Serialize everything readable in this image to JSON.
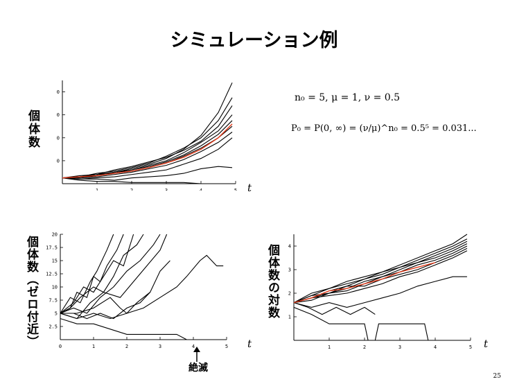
{
  "slide": {
    "title": "シミュレーション例",
    "page_number": "25",
    "params": "n₀ = 5, μ = 1, ν = 0.5",
    "formula": "P₀ = P(0, ∞) = (ν/μ)^n₀ = 0.5⁵ = 0.031...",
    "extinction_label": "絶滅"
  },
  "chart_data": [
    {
      "type": "line",
      "ylabel": "個体数",
      "xlabel": "t",
      "xlim": [
        0,
        5
      ],
      "ylim": [
        0,
        90
      ],
      "x_ticks": [
        "1",
        "2",
        "3",
        "4",
        "5"
      ],
      "y_ticks": [
        "20",
        "40",
        "60",
        "80"
      ],
      "x_tick_values": [
        1,
        2,
        3,
        4,
        5
      ],
      "y_tick_values": [
        20,
        40,
        60,
        80
      ],
      "series": [
        {
          "color": "#000000",
          "x": [
            0,
            0.5,
            1,
            1.5,
            2,
            2.5,
            3,
            3.5,
            4,
            4.5,
            4.9
          ],
          "values": [
            5,
            6,
            8,
            10,
            13,
            17,
            22,
            30,
            42,
            62,
            88
          ]
        },
        {
          "color": "#000000",
          "x": [
            0,
            0.5,
            1,
            1.5,
            2,
            2.5,
            3,
            3.5,
            4,
            4.5,
            4.9
          ],
          "values": [
            5,
            6,
            9,
            11,
            14,
            18,
            24,
            31,
            40,
            55,
            75
          ]
        },
        {
          "color": "#000000",
          "x": [
            0,
            0.5,
            1,
            1.5,
            2,
            2.5,
            3,
            3.5,
            4,
            4.5,
            4.9
          ],
          "values": [
            5,
            7,
            8,
            12,
            15,
            19,
            23,
            29,
            37,
            50,
            68
          ]
        },
        {
          "color": "#000000",
          "x": [
            0,
            0.5,
            1,
            1.5,
            2,
            2.5,
            3,
            3.5,
            4,
            4.5,
            4.9
          ],
          "values": [
            5,
            5,
            7,
            9,
            12,
            16,
            20,
            27,
            36,
            46,
            60
          ]
        },
        {
          "color": "#000000",
          "x": [
            0,
            0.5,
            1,
            1.5,
            2,
            2.5,
            3,
            3.5,
            4,
            4.5,
            4.9
          ],
          "values": [
            5,
            6,
            7,
            10,
            12,
            15,
            19,
            25,
            33,
            43,
            55
          ]
        },
        {
          "color": "#000000",
          "x": [
            0,
            0.5,
            1,
            1.5,
            2,
            2.5,
            3,
            3.5,
            4,
            4.5,
            4.9
          ],
          "values": [
            5,
            6,
            8,
            9,
            11,
            14,
            18,
            24,
            31,
            40,
            50
          ]
        },
        {
          "color": "#000000",
          "x": [
            0,
            0.5,
            1,
            1.5,
            2,
            2.5,
            3,
            3.5,
            4,
            4.5,
            4.9
          ],
          "values": [
            5,
            5,
            6,
            8,
            10,
            13,
            16,
            21,
            28,
            36,
            45
          ]
        },
        {
          "color": "#000000",
          "x": [
            0,
            0.5,
            1,
            1.5,
            2,
            2.5,
            3,
            3.5,
            4,
            4.5,
            4.9
          ],
          "values": [
            5,
            4,
            5,
            6,
            8,
            10,
            12,
            17,
            22,
            30,
            40
          ]
        },
        {
          "color": "#000000",
          "x": [
            0,
            0.5,
            1,
            1.5,
            2,
            2.5,
            3,
            3.5,
            4,
            4.5,
            4.9
          ],
          "values": [
            5,
            4,
            4,
            3,
            5,
            6,
            7,
            9,
            13,
            15,
            14
          ]
        },
        {
          "color": "#000000",
          "x": [
            0,
            0.5,
            1,
            1.5,
            2,
            2.5,
            3,
            3.5,
            4,
            4.2
          ],
          "values": [
            5,
            3,
            2,
            2,
            1,
            1,
            1,
            1,
            0,
            0
          ]
        },
        {
          "color": "#e03a1a",
          "x": [
            0,
            0.5,
            1,
            1.5,
            2,
            2.5,
            3,
            3.5,
            4,
            4.5,
            4.9
          ],
          "values": [
            5,
            6,
            7,
            9,
            11,
            14,
            18,
            23,
            30,
            40,
            52
          ]
        }
      ]
    },
    {
      "type": "line",
      "ylabel": "個体数（ゼロ付近）",
      "xlabel": "t",
      "xlim": [
        0,
        5
      ],
      "ylim": [
        0,
        20
      ],
      "x_ticks": [
        "0",
        "1",
        "2",
        "3",
        "4",
        "5"
      ],
      "y_ticks": [
        "2.5",
        "5",
        "7.5",
        "10",
        "12.5",
        "15",
        "17.5",
        "20"
      ],
      "x_tick_values": [
        0,
        1,
        2,
        3,
        4,
        5
      ],
      "y_tick_values": [
        2.5,
        5,
        7.5,
        10,
        12.5,
        15,
        17.5,
        20
      ],
      "series": [
        {
          "color": "#000000",
          "x": [
            0,
            0.3,
            0.6,
            0.9,
            1.1,
            1.4,
            1.6
          ],
          "values": [
            5,
            8,
            7,
            11,
            13,
            17,
            20
          ]
        },
        {
          "color": "#000000",
          "x": [
            0,
            0.3,
            0.5,
            0.8,
            1.0,
            1.2,
            1.4,
            1.7,
            1.9
          ],
          "values": [
            5,
            6,
            9,
            8,
            12,
            11,
            14,
            17,
            20
          ]
        },
        {
          "color": "#000000",
          "x": [
            0,
            0.4,
            0.7,
            1.0,
            1.3,
            1.6,
            1.9,
            2.2
          ],
          "values": [
            5,
            7,
            10,
            9,
            12,
            15,
            14,
            20
          ]
        },
        {
          "color": "#000000",
          "x": [
            0,
            0.3,
            0.6,
            1.0,
            1.3,
            1.6,
            1.9,
            2.3,
            2.5
          ],
          "values": [
            5,
            6,
            8,
            10,
            9,
            12,
            16,
            18,
            20
          ]
        },
        {
          "color": "#000000",
          "x": [
            0,
            0.4,
            0.8,
            1.2,
            1.6,
            2.0,
            2.4,
            2.8,
            3.0
          ],
          "values": [
            5,
            6,
            5,
            8,
            10,
            13,
            15,
            18,
            20
          ]
        },
        {
          "color": "#000000",
          "x": [
            0,
            0.5,
            0.9,
            1.3,
            1.8,
            2.2,
            2.6,
            3.0,
            3.2
          ],
          "values": [
            5,
            4,
            7,
            9,
            8,
            11,
            14,
            17,
            20
          ]
        },
        {
          "color": "#000000",
          "x": [
            0,
            0.5,
            1.0,
            1.5,
            1.8,
            2.0,
            2.3,
            2.7,
            3.0,
            3.3
          ],
          "values": [
            5,
            5,
            6,
            8,
            6,
            5,
            7,
            9,
            13,
            15
          ]
        },
        {
          "color": "#000000",
          "x": [
            0,
            0.5,
            1.0,
            1.5,
            2.0,
            2.5,
            3.0,
            3.5,
            3.8,
            4.2,
            4.4,
            4.7,
            4.9
          ],
          "values": [
            5,
            4,
            5,
            4,
            5,
            6,
            8,
            10,
            12,
            15,
            16,
            14,
            14
          ]
        },
        {
          "color": "#000000",
          "x": [
            0,
            0.4,
            0.8,
            1.2,
            1.6,
            2.0,
            2.4,
            2.7
          ],
          "values": [
            5,
            5,
            4,
            5,
            4,
            6,
            7,
            9
          ]
        },
        {
          "color": "#000000",
          "x": [
            0,
            0.5,
            1.0,
            1.5,
            2.0,
            2.5,
            3.0,
            3.5,
            3.8,
            4.1
          ],
          "values": [
            4,
            3,
            3,
            2,
            1,
            1,
            1,
            1,
            0,
            0
          ]
        }
      ]
    },
    {
      "type": "line",
      "ylabel": "個体数の対数",
      "xlabel": "t",
      "xlim": [
        0,
        5
      ],
      "ylim": [
        0,
        4.5
      ],
      "x_ticks": [
        "1",
        "2",
        "3",
        "4",
        "5"
      ],
      "y_ticks": [
        "1",
        "2",
        "3",
        "4"
      ],
      "x_tick_values": [
        1,
        2,
        3,
        4,
        5
      ],
      "y_tick_values": [
        1,
        2,
        3,
        4
      ],
      "series": [
        {
          "color": "#000000",
          "x": [
            0,
            0.5,
            1,
            1.5,
            2,
            2.5,
            3,
            3.5,
            4,
            4.5,
            4.9
          ],
          "values": [
            1.6,
            1.9,
            2.2,
            2.4,
            2.6,
            2.9,
            3.2,
            3.5,
            3.8,
            4.1,
            4.5
          ]
        },
        {
          "color": "#000000",
          "x": [
            0,
            0.5,
            1,
            1.5,
            2,
            2.5,
            3,
            3.5,
            4,
            4.5,
            4.9
          ],
          "values": [
            1.6,
            2.0,
            2.2,
            2.5,
            2.7,
            2.9,
            3.1,
            3.4,
            3.7,
            4.0,
            4.3
          ]
        },
        {
          "color": "#000000",
          "x": [
            0,
            0.5,
            1,
            1.5,
            2,
            2.5,
            3,
            3.5,
            4,
            4.5,
            4.9
          ],
          "values": [
            1.6,
            1.8,
            2.1,
            2.3,
            2.6,
            2.8,
            3.1,
            3.3,
            3.6,
            3.9,
            4.2
          ]
        },
        {
          "color": "#000000",
          "x": [
            0,
            0.5,
            1,
            1.5,
            2,
            2.5,
            3,
            3.5,
            4,
            4.5,
            4.9
          ],
          "values": [
            1.6,
            1.8,
            2.0,
            2.2,
            2.5,
            2.7,
            3.0,
            3.3,
            3.5,
            3.8,
            4.1
          ]
        },
        {
          "color": "#000000",
          "x": [
            0,
            0.5,
            1,
            1.5,
            2,
            2.5,
            3,
            3.5,
            4,
            4.5,
            4.9
          ],
          "values": [
            1.6,
            1.7,
            2.0,
            2.1,
            2.4,
            2.7,
            2.9,
            3.2,
            3.4,
            3.7,
            4.0
          ]
        },
        {
          "color": "#000000",
          "x": [
            0,
            0.5,
            1,
            1.5,
            2,
            2.5,
            3,
            3.5,
            4,
            4.5,
            4.9
          ],
          "values": [
            1.6,
            1.9,
            2.0,
            2.3,
            2.3,
            2.6,
            2.8,
            3.0,
            3.3,
            3.6,
            3.9
          ]
        },
        {
          "color": "#000000",
          "x": [
            0,
            0.5,
            1,
            1.5,
            2,
            2.5,
            3,
            3.5,
            4,
            4.5,
            4.9
          ],
          "values": [
            1.6,
            1.8,
            1.9,
            2.0,
            2.2,
            2.4,
            2.7,
            2.9,
            3.2,
            3.5,
            3.8
          ]
        },
        {
          "color": "#000000",
          "x": [
            0,
            0.5,
            1,
            1.5,
            2,
            2.5,
            3,
            3.5,
            4,
            4.5,
            4.9
          ],
          "values": [
            1.6,
            1.4,
            1.6,
            1.4,
            1.6,
            1.8,
            2.0,
            2.3,
            2.5,
            2.7,
            2.7
          ]
        },
        {
          "color": "#000000",
          "x": [
            0,
            0.4,
            0.8,
            1.2,
            1.6,
            2.0,
            2.3
          ],
          "values": [
            1.6,
            1.4,
            1.1,
            1.4,
            1.1,
            1.4,
            1.1
          ]
        },
        {
          "color": "#000000",
          "x": [
            0,
            0.5,
            1.0,
            1.5,
            2.0,
            2.1,
            2.3,
            2.4,
            3.7,
            3.8
          ],
          "values": [
            1.4,
            1.1,
            0.7,
            0.7,
            0.7,
            0,
            0,
            0.7,
            0.7,
            0
          ]
        },
        {
          "color": "#e03a1a",
          "x": [
            0,
            0.5,
            1,
            1.5,
            2,
            2.5,
            3,
            3.5,
            4
          ],
          "values": [
            1.6,
            1.8,
            2.1,
            2.2,
            2.4,
            2.6,
            2.9,
            3.1,
            3.3
          ]
        }
      ]
    }
  ]
}
